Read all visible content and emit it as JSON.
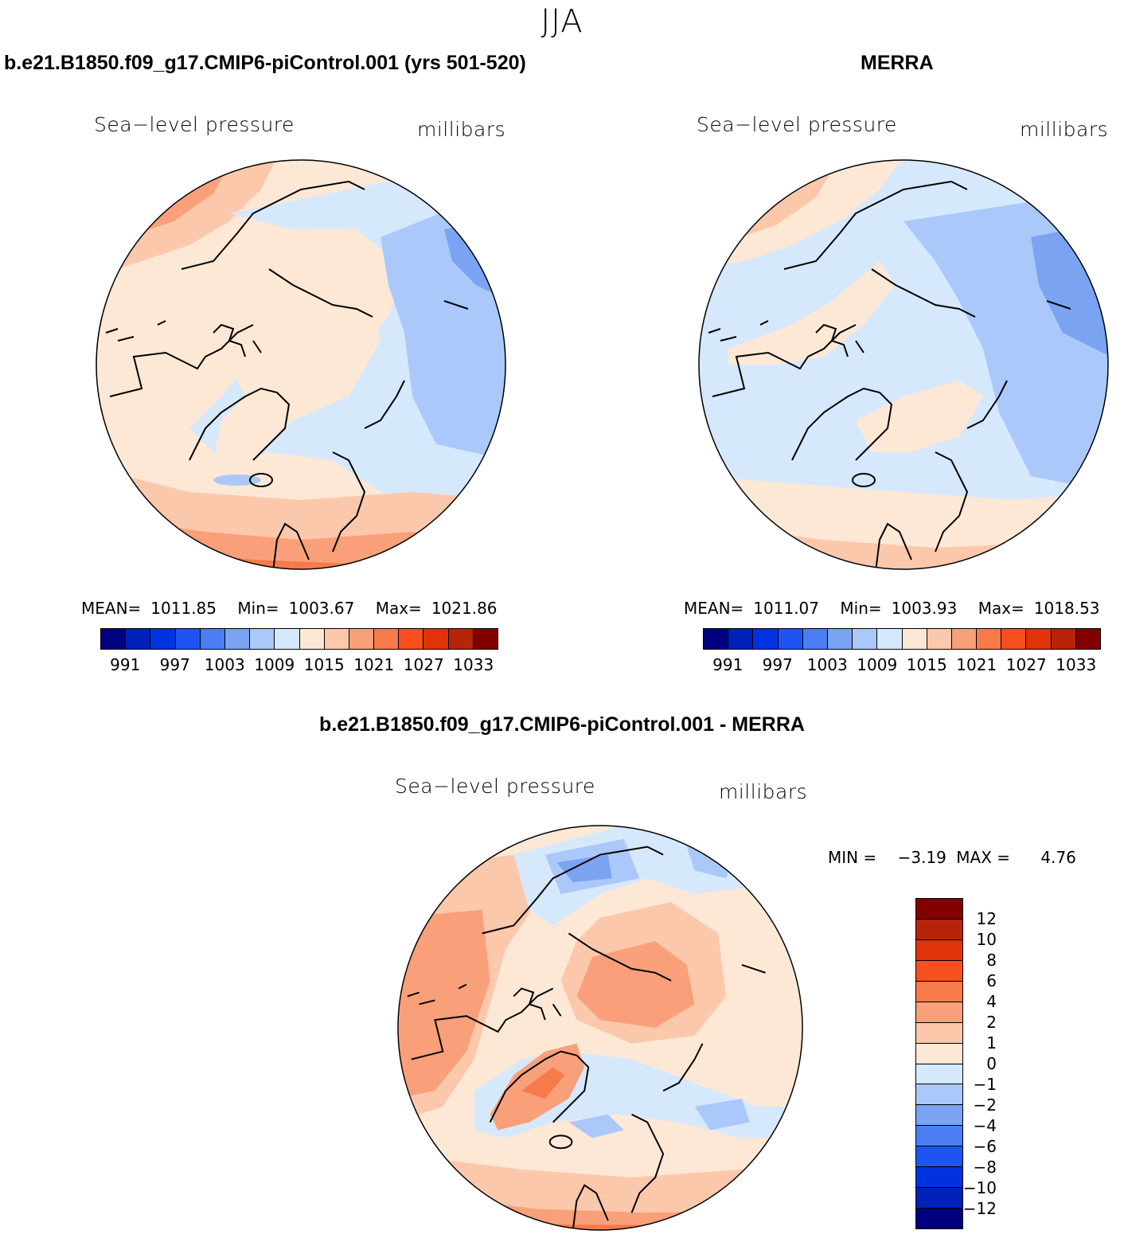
{
  "season": "JJA",
  "panels": [
    {
      "title": "b.e21.B1850.f09_g17.CMIP6-piControl.001 (yrs 501-520)",
      "left_label": "Sea−level pressure",
      "right_label": "millibars",
      "stats": [
        {
          "label": "MEAN=",
          "value": "1011.85"
        },
        {
          "label": "Min=",
          "value": "1003.67"
        },
        {
          "label": "Max=",
          "value": "1021.86"
        }
      ]
    },
    {
      "title": "MERRA",
      "left_label": "Sea−level pressure",
      "right_label": "millibars",
      "stats": [
        {
          "label": "MEAN=",
          "value": "1011.07"
        },
        {
          "label": "Min=",
          "value": "1003.93"
        },
        {
          "label": "Max=",
          "value": "1018.53"
        }
      ]
    },
    {
      "title": "b.e21.B1850.f09_g17.CMIP6-piControl.001 - MERRA",
      "left_label": "Sea−level pressure",
      "right_label": "millibars",
      "stats": [
        {
          "label": "MIN =",
          "value": "−3.19"
        },
        {
          "label": "MAX =",
          "value": "4.76"
        }
      ]
    }
  ],
  "abs_colorbar": {
    "colors": [
      "#00007f",
      "#0022b8",
      "#0033e0",
      "#1e55f2",
      "#4a7ef2",
      "#7aa3f2",
      "#aac8fa",
      "#d6e8fc",
      "#fde8d6",
      "#fcc8ac",
      "#f9a07a",
      "#f77a4a",
      "#f5501e",
      "#e0330a",
      "#b82409",
      "#820000"
    ],
    "labels": [
      "991",
      "997",
      "1003",
      "1009",
      "1015",
      "1021",
      "1027",
      "1033"
    ]
  },
  "diff_colorbar": {
    "colors_top_to_bottom": [
      "#820000",
      "#b82409",
      "#e0330a",
      "#f5501e",
      "#f77a4a",
      "#f9a07a",
      "#fcc8ac",
      "#fde8d6",
      "#d6e8fc",
      "#aac8fa",
      "#7aa3f2",
      "#4a7ef2",
      "#1e55f2",
      "#0033e0",
      "#0022b8",
      "#00007f"
    ],
    "labels": [
      "12",
      "10",
      "8",
      "6",
      "4",
      "2",
      "1",
      "0",
      "−1",
      "−2",
      "−4",
      "−6",
      "−8",
      "−10",
      "−12"
    ]
  },
  "map_colors": {
    "panel1": {
      "base": "#fde8d6",
      "zones": [
        "#fcc8ac",
        "#f9a07a",
        "#f77a4a",
        "#d6e8fc",
        "#aac8fa",
        "#7aa3f2"
      ]
    },
    "panel2": {
      "base": "#d6e8fc",
      "zones": [
        "#fde8d6",
        "#fcc8ac",
        "#f9a07a",
        "#aac8fa",
        "#7aa3f2"
      ]
    },
    "panel3": {
      "base": "#fde8d6",
      "zones": [
        "#fcc8ac",
        "#f9a07a",
        "#f77a4a",
        "#d6e8fc",
        "#aac8fa",
        "#7aa3f2"
      ]
    }
  }
}
